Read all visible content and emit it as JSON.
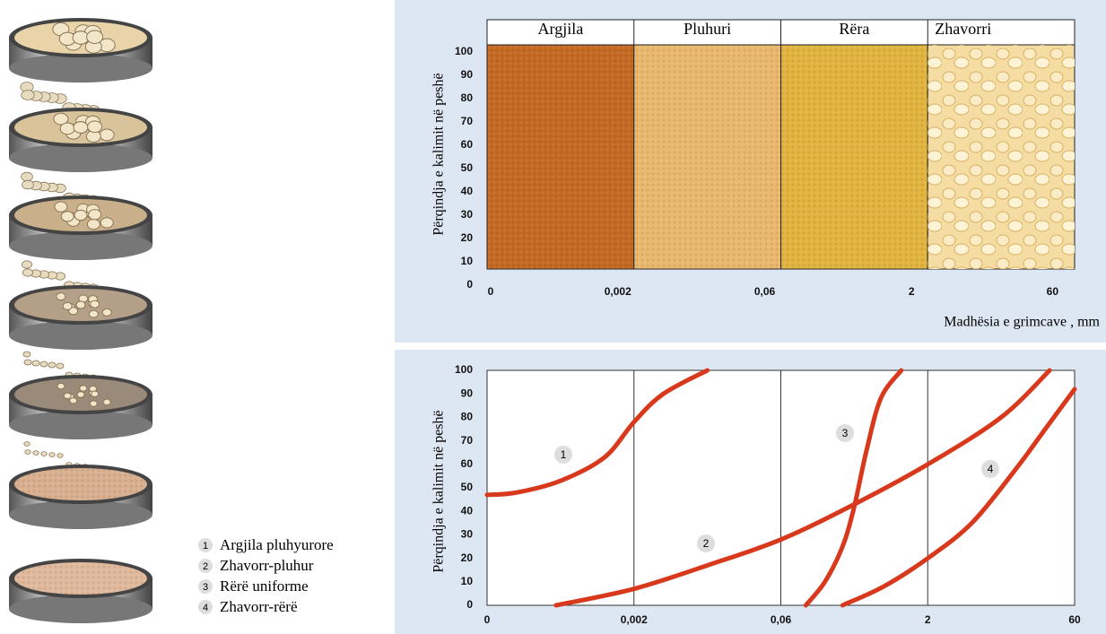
{
  "chart_data": [
    {
      "type": "bands",
      "categories": [
        "Argjila",
        "Pluhuri",
        "Rëra",
        "Zhavorri"
      ],
      "colors": [
        "#c46a24",
        "#e9b76e",
        "#e0b43e",
        "#f4dca2"
      ],
      "ylabel": "Përqindja e kalimit në peshë",
      "xlabel": "Madhësia e grimcave , mm",
      "x_tick_labels": [
        "0",
        "0,002",
        "0,06",
        "2",
        "60"
      ],
      "ylim": [
        0,
        100
      ],
      "yticks": [
        0,
        10,
        20,
        30,
        40,
        50,
        60,
        70,
        80,
        90,
        100
      ]
    },
    {
      "type": "line",
      "ylabel": "Përqindja e kalimit në peshë",
      "x_tick_labels": [
        "0",
        "0,002",
        "0,06",
        "2",
        "60"
      ],
      "xlim": [
        0,
        4
      ],
      "ylim": [
        0,
        100
      ],
      "yticks": [
        0,
        10,
        20,
        30,
        40,
        50,
        60,
        70,
        80,
        90,
        100
      ],
      "series": [
        {
          "name": "Argjila pluhyurore",
          "label": "1",
          "color": "#d8391c",
          "x": [
            0,
            0.2,
            0.5,
            0.8,
            1,
            1.2,
            1.5
          ],
          "values": [
            47,
            48,
            53,
            63,
            78,
            90,
            100
          ]
        },
        {
          "name": "Zhavorr-pluhur",
          "label": "2",
          "color": "#d8391c",
          "x": [
            0.47,
            1,
            1.5,
            2,
            2.5,
            3,
            3.5,
            3.83
          ],
          "values": [
            0,
            7,
            17,
            28,
            43,
            60,
            80,
            100
          ]
        },
        {
          "name": "Rërë uniforme",
          "label": "3",
          "color": "#d8391c",
          "x": [
            2.17,
            2.3,
            2.42,
            2.5,
            2.58,
            2.68,
            2.82
          ],
          "values": [
            0,
            10,
            25,
            42,
            65,
            88,
            100
          ]
        },
        {
          "name": "Zhavorr-rërë",
          "label": "4",
          "color": "#d8391c",
          "x": [
            2.42,
            2.7,
            3,
            3.3,
            3.6,
            3.8,
            4
          ],
          "values": [
            0,
            8,
            20,
            35,
            58,
            75,
            92
          ]
        }
      ]
    }
  ]
}
